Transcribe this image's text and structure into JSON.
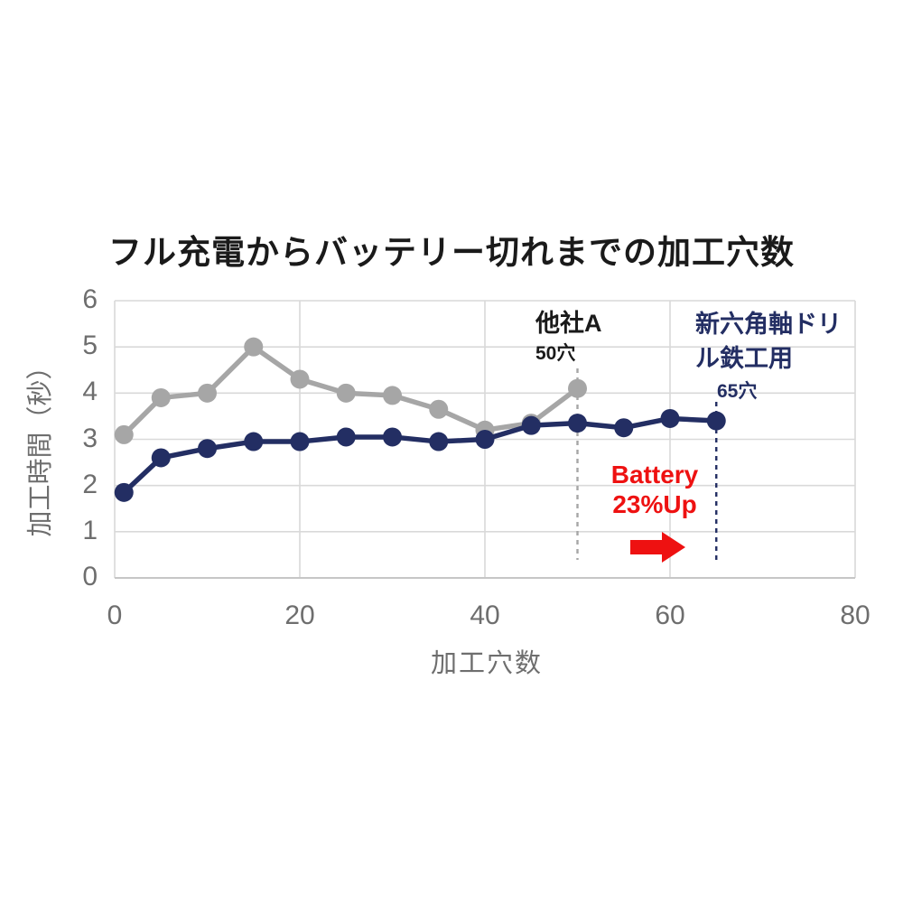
{
  "title": "フル充電からバッテリー切れまでの加工穴数",
  "colors": {
    "navy": "#232e63",
    "gray": "#a6a6a6",
    "red": "#ee1111",
    "grid": "#d9d9d9",
    "axis_line": "#c6c6c6",
    "axis_text": "#6e6e6e",
    "title_text": "#1a1a1a"
  },
  "chart_data": {
    "type": "line",
    "title": "フル充電からバッテリー切れまでの加工穴数",
    "xlabel": "加工穴数",
    "ylabel": "加工時間（秒）",
    "xlim": [
      0,
      80
    ],
    "ylim": [
      0,
      6
    ],
    "x_ticks": [
      0,
      20,
      40,
      60,
      80
    ],
    "y_ticks": [
      0,
      1,
      2,
      3,
      4,
      5,
      6
    ],
    "grid": true,
    "legend_position": "inline-annotations",
    "series": [
      {
        "name": "他社A",
        "color_key": "gray",
        "x": [
          1,
          5,
          10,
          15,
          20,
          25,
          30,
          35,
          40,
          45,
          50
        ],
        "y": [
          3.1,
          3.9,
          4.0,
          5.0,
          4.3,
          4.0,
          3.95,
          3.65,
          3.2,
          3.35,
          4.1
        ]
      },
      {
        "name": "新六角軸ドリル鉄工用",
        "color_key": "navy",
        "x": [
          1,
          5,
          10,
          15,
          20,
          25,
          30,
          35,
          40,
          45,
          50,
          55,
          60,
          65
        ],
        "y": [
          1.85,
          2.6,
          2.8,
          2.95,
          2.95,
          3.05,
          3.05,
          2.95,
          3.0,
          3.3,
          3.35,
          3.25,
          3.45,
          3.4
        ]
      }
    ],
    "dashed_lines": [
      {
        "x": 50,
        "color_key": "gray"
      },
      {
        "x": 65,
        "color_key": "navy"
      }
    ],
    "annotations": {
      "competitor": {
        "label": "他社A",
        "sublabel": "50穴"
      },
      "new_drill": {
        "label": "新六角軸ドリル鉄工用",
        "sublabel": "65穴"
      },
      "battery": {
        "line1": "Battery",
        "line2": "23%Up"
      }
    }
  }
}
